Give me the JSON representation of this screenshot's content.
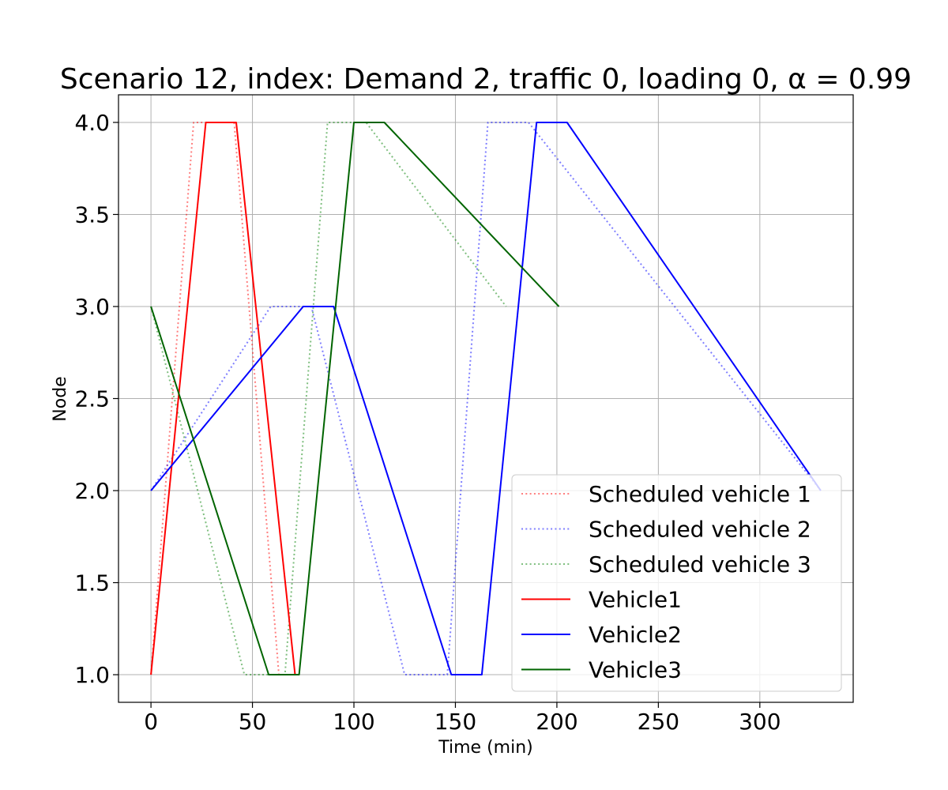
{
  "chart_data": {
    "type": "line",
    "title": "Scenario 12, index: Demand 2, traffic 0, loading 0, α = 0.99",
    "xlabel": "Time (min)",
    "ylabel": "Node",
    "xlim": [
      -16,
      346
    ],
    "ylim": [
      0.85,
      4.15
    ],
    "xticks": [
      0,
      50,
      100,
      150,
      200,
      250,
      300
    ],
    "xtick_labels": [
      "0",
      "50",
      "100",
      "150",
      "200",
      "250",
      "300"
    ],
    "yticks": [
      1.0,
      1.5,
      2.0,
      2.5,
      3.0,
      3.5,
      4.0
    ],
    "ytick_labels": [
      "1.0",
      "1.5",
      "2.0",
      "2.5",
      "3.0",
      "3.5",
      "4.0"
    ],
    "grid": true,
    "legend_position": "lower-right",
    "series": [
      {
        "name": "Scheduled vehicle 1",
        "style": "dotted",
        "color": "#ff0000",
        "alpha": 0.5,
        "x": [
          0,
          21,
          41,
          63,
          72
        ],
        "y": [
          1,
          4,
          4,
          1,
          1
        ]
      },
      {
        "name": "Scheduled vehicle 2",
        "style": "dotted",
        "color": "#0000ff",
        "alpha": 0.5,
        "x": [
          0,
          59,
          79,
          125,
          146,
          166,
          186,
          330
        ],
        "y": [
          2,
          3,
          3,
          1,
          1,
          4,
          4,
          2
        ]
      },
      {
        "name": "Scheduled vehicle 3",
        "style": "dotted",
        "color": "#008000",
        "alpha": 0.5,
        "x": [
          0,
          46,
          66,
          87,
          106,
          175
        ],
        "y": [
          3,
          1,
          1,
          4,
          4,
          3
        ]
      },
      {
        "name": "Vehicle1",
        "style": "solid",
        "color": "#ff0000",
        "alpha": 1,
        "x": [
          0,
          27,
          42,
          71
        ],
        "y": [
          1,
          4,
          4,
          1
        ]
      },
      {
        "name": "Vehicle2",
        "style": "solid",
        "color": "#0000ff",
        "alpha": 1,
        "x": [
          0,
          75,
          90,
          148,
          163,
          190,
          205,
          330
        ],
        "y": [
          2,
          3,
          3,
          1,
          1,
          4,
          4,
          2
        ]
      },
      {
        "name": "Vehicle3",
        "style": "solid",
        "color": "#006400",
        "alpha": 1,
        "x": [
          0,
          58,
          73,
          100,
          115,
          201
        ],
        "y": [
          3,
          1,
          1,
          4,
          4,
          3
        ]
      }
    ]
  }
}
